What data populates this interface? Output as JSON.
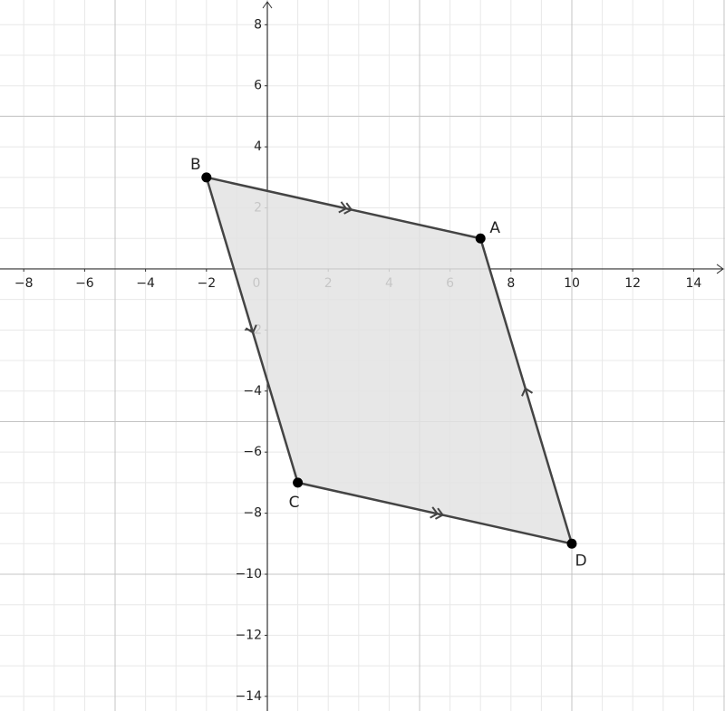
{
  "chart_data": {
    "type": "polygon",
    "points": {
      "labels": [
        "A",
        "B",
        "C",
        "D"
      ],
      "x": [
        7,
        -2,
        1,
        10
      ],
      "y": [
        1,
        3,
        -7,
        -9
      ]
    },
    "stroke": "#444444",
    "fill": "#e3e3e3",
    "point_color": "#000000",
    "xlim": [
      -8.78,
      15.03
    ],
    "ylim": [
      -14.48,
      8.81
    ],
    "xticks": [
      {
        "value": -8,
        "label": "−8"
      },
      {
        "value": -6,
        "label": "−6"
      },
      {
        "value": -4,
        "label": "−4"
      },
      {
        "value": -2,
        "label": "−2"
      },
      0,
      2,
      4,
      6,
      8,
      10,
      12,
      14
    ],
    "yticks": [
      {
        "value": -14,
        "label": "−14"
      },
      {
        "value": -12,
        "label": "−12"
      },
      {
        "value": -10,
        "label": "−10"
      },
      {
        "value": -8,
        "label": "−8"
      },
      {
        "value": -6,
        "label": "−6"
      },
      {
        "value": -4,
        "label": "−4"
      },
      {
        "value": -2,
        "label": "−2"
      },
      2,
      4,
      6,
      8
    ],
    "minor_grid": 1,
    "major_grid": 5
  }
}
